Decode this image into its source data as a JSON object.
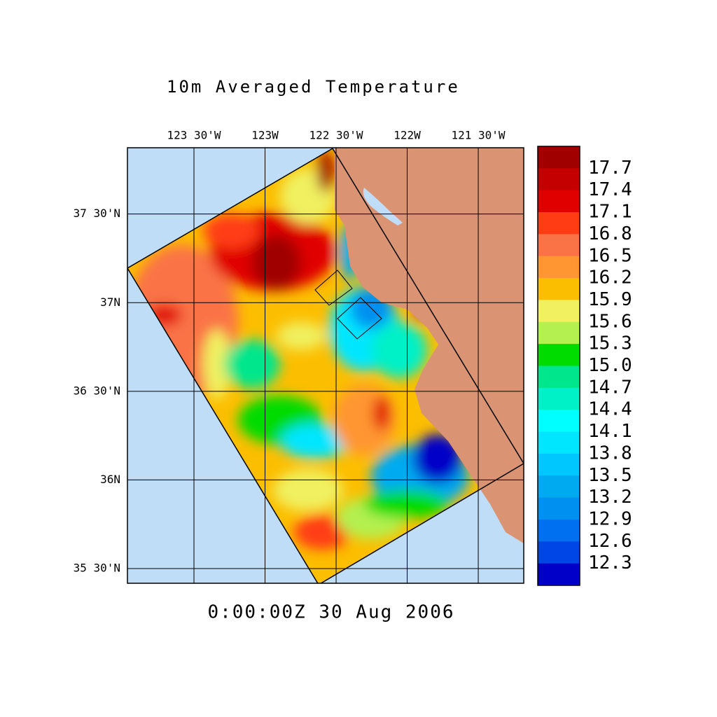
{
  "title": "10m Averaged Temperature",
  "timestamp": "0:00:00Z  30 Aug 2006",
  "lon_range": [
    -123.968,
    -121.18
  ],
  "lat_range": [
    35.417,
    37.874
  ],
  "lon_ticks": [
    {
      "value": -123.5,
      "label": "123 30'W"
    },
    {
      "value": -123,
      "label": "123W"
    },
    {
      "value": -122.5,
      "label": "122 30'W"
    },
    {
      "value": -122,
      "label": "122W"
    },
    {
      "value": -121.5,
      "label": "121 30'W"
    }
  ],
  "lat_ticks": [
    {
      "value": 37.5,
      "label": "37 30'N"
    },
    {
      "value": 37,
      "label": "37N"
    },
    {
      "value": 36.5,
      "label": "36 30'N"
    },
    {
      "value": 36,
      "label": "36N"
    },
    {
      "value": 35.5,
      "label": "35 30'N"
    }
  ],
  "colorbar": {
    "labels": [
      "17.7",
      "17.4",
      "17.1",
      "16.8",
      "16.5",
      "16.2",
      "15.9",
      "15.6",
      "15.3",
      "15.0",
      "14.7",
      "14.4",
      "14.1",
      "13.8",
      "13.5",
      "13.2",
      "12.9",
      "12.6",
      "12.3"
    ],
    "colors": [
      "#a00000",
      "#c40000",
      "#e00000",
      "#ff3c14",
      "#fa7346",
      "#ff9632",
      "#fcbe00",
      "#f0f060",
      "#b4f050",
      "#00dc00",
      "#00e68c",
      "#00f0c8",
      "#00ffff",
      "#00e6ff",
      "#00c8ff",
      "#00aaf0",
      "#0090f0",
      "#0070f0",
      "#0046e6",
      "#0000c8"
    ]
  }
}
